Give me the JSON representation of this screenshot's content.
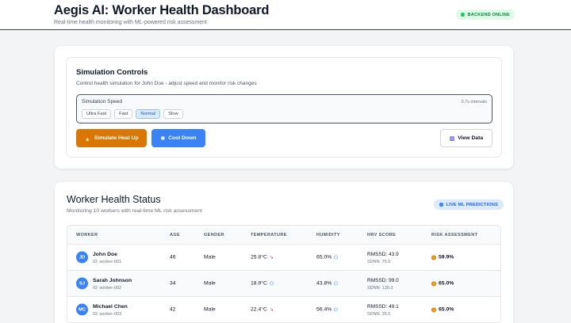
{
  "header": {
    "title": "Aegis AI: Worker Health Dashboard",
    "subtitle": "Real-time health monitoring with ML-powered risk assessment",
    "backend_status": "BACKEND ONLINE",
    "backend_color": "#22c55e"
  },
  "simulation": {
    "title": "Simulation Controls",
    "subtitle": "Control health simulation for John Doe - adjust speed and monitor risk changes",
    "speed_label": "Simulation Speed",
    "interval": "0.7s intervals",
    "speeds": [
      "Ultra Fast",
      "Fast",
      "Normal",
      "Slow"
    ],
    "selected_speed": "Normal",
    "heat_button": "Simulate Heat Up",
    "cool_button": "Cool Down",
    "view_button": "View Data",
    "heat_color": "#d97706",
    "cool_color": "#3b82f6"
  },
  "status": {
    "title": "Worker Health Status",
    "subtitle": "Monitoring 10 workers with real-time ML risk assessment",
    "ml_badge": "LIVE ML PREDICTIONS",
    "columns": [
      "WORKER",
      "AGE",
      "GENDER",
      "TEMPERATURE",
      "HUMIDITY",
      "HRV SCORE",
      "RISK ASSESSMENT"
    ],
    "workers": [
      {
        "initials": "JD",
        "name": "John Doe",
        "id": "ID: worker-001",
        "age": "46",
        "gender": "Male",
        "temperature": "25.8°C",
        "temp_trend": "down",
        "humidity": "65.0%",
        "rmssd": "RMSSD: 43.9",
        "sdnn": "SDNN: 76.5",
        "risk": "59.9%"
      },
      {
        "initials": "SJ",
        "name": "Sarah Johnson",
        "id": "ID: worker-002",
        "age": "34",
        "gender": "Male",
        "temperature": "18.9°C",
        "temp_trend": "steady",
        "humidity": "43.8%",
        "rmssd": "RMSSD: 99.0",
        "sdnn": "SDNN: 128.3",
        "risk": "65.0%"
      },
      {
        "initials": "MC",
        "name": "Michael Chen",
        "id": "ID: worker-003",
        "age": "42",
        "gender": "Male",
        "temperature": "22.4°C",
        "temp_trend": "down",
        "humidity": "56.4%",
        "rmssd": "RMSSD: 49.1",
        "sdnn": "SDNN: 35.5",
        "risk": "65.0%"
      }
    ]
  }
}
